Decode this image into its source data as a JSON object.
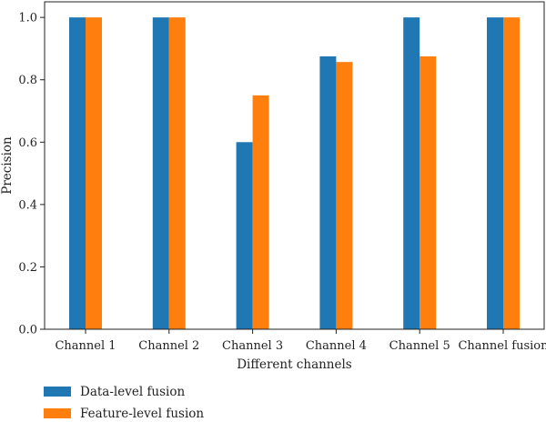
{
  "chart_data": {
    "type": "bar",
    "categories": [
      "Channel 1",
      "Channel 2",
      "Channel 3",
      "Channel 4",
      "Channel 5",
      "Channel fusion"
    ],
    "series": [
      {
        "name": "Data-level fusion",
        "color": "#1f77b4",
        "values": [
          1.0,
          1.0,
          0.6,
          0.875,
          1.0,
          1.0
        ]
      },
      {
        "name": "Feature-level fusion",
        "color": "#ff7f0e",
        "values": [
          1.0,
          1.0,
          0.75,
          0.857,
          0.875,
          1.0
        ]
      }
    ],
    "title": "",
    "xlabel": "Different channels",
    "ylabel": "Precision",
    "ylim": [
      0,
      1.05
    ],
    "yticks": [
      "0.0",
      "0.2",
      "0.4",
      "0.6",
      "0.8",
      "1.0"
    ],
    "ytick_values": [
      0.0,
      0.2,
      0.4,
      0.6,
      0.8,
      1.0
    ],
    "grid": false,
    "legend_position": "bottom-left"
  }
}
